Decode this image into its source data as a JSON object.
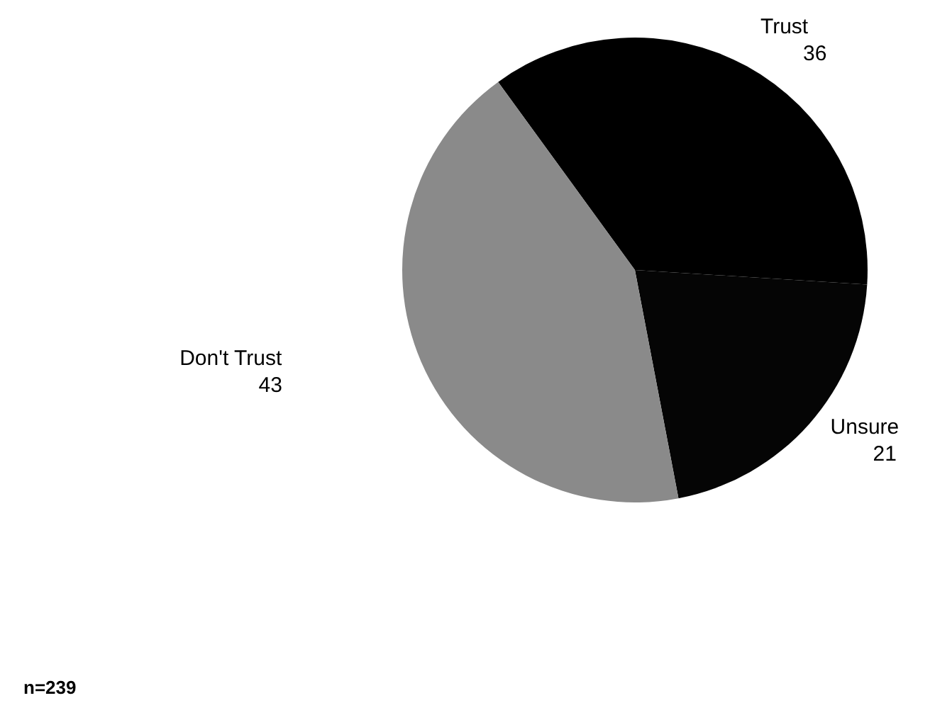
{
  "chart_data": {
    "type": "pie",
    "categories": [
      "Trust",
      "Unsure",
      "Don't Trust"
    ],
    "values": [
      36,
      21,
      43
    ],
    "colors": [
      "#000000",
      "#050505",
      "#8a8a8a"
    ],
    "data_labels": true,
    "annotations": [
      "n=239"
    ]
  }
}
